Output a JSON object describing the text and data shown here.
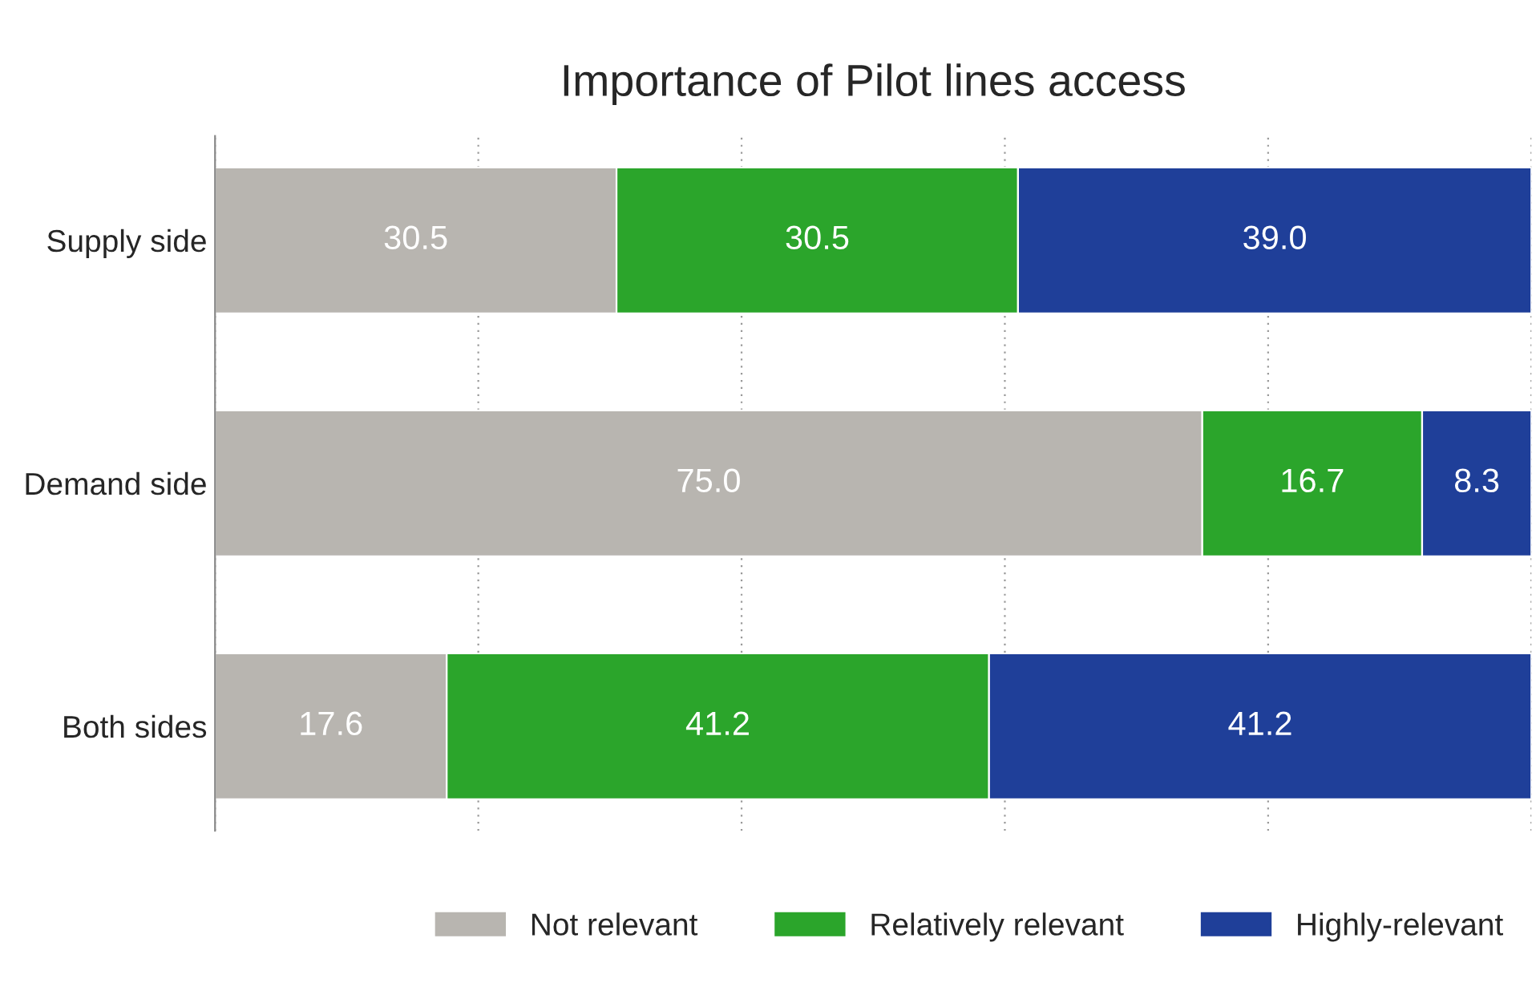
{
  "chart_data": {
    "type": "bar",
    "orientation": "horizontal",
    "stacked": true,
    "title": "Importance of Pilot lines access",
    "categories": [
      "Supply side",
      "Demand side",
      "Both sides"
    ],
    "series": [
      {
        "name": "Not relevant",
        "color": "#b8b5b0",
        "values": [
          30.5,
          75.0,
          17.6
        ],
        "value_labels": [
          "30.5",
          "75.0",
          "17.6"
        ]
      },
      {
        "name": "Relatively relevant",
        "color": "#2ba52b",
        "values": [
          30.5,
          16.7,
          41.2
        ],
        "value_labels": [
          "30.5",
          "16.7",
          "41.2"
        ]
      },
      {
        "name": "Highly-relevant",
        "color": "#1f3f99",
        "values": [
          39.0,
          8.3,
          41.2
        ],
        "value_labels": [
          "39.0",
          "8.3",
          "41.2"
        ]
      }
    ],
    "xlim": [
      0,
      100
    ],
    "xticks": [
      {
        "value": 0,
        "label": null
      },
      {
        "value": 20,
        "label": null
      },
      {
        "value": 40,
        "label": null
      },
      {
        "value": 60,
        "label": null
      },
      {
        "value": 80,
        "label": null
      },
      {
        "value": 100,
        "label": null
      }
    ],
    "tick_labels": "y",
    "grid": "x",
    "legend": "bottom right"
  }
}
